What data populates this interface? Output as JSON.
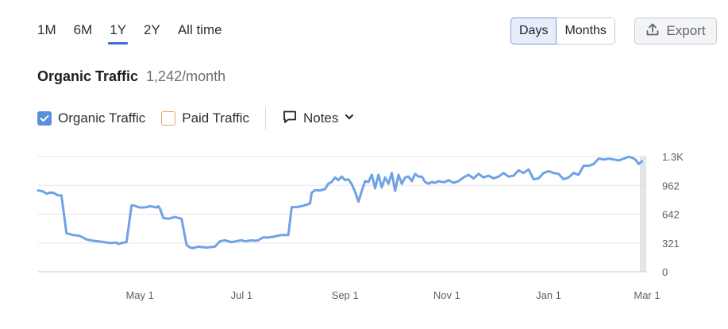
{
  "range_tabs": [
    {
      "label": "1M",
      "active": false
    },
    {
      "label": "6M",
      "active": false
    },
    {
      "label": "1Y",
      "active": true
    },
    {
      "label": "2Y",
      "active": false
    },
    {
      "label": "All time",
      "active": false
    }
  ],
  "granularity": {
    "days_label": "Days",
    "months_label": "Months",
    "selected": "Days"
  },
  "export": {
    "label": "Export",
    "icon": "upload-icon"
  },
  "header": {
    "title": "Organic Traffic",
    "value": "1,242/month"
  },
  "legend": {
    "organic_label": "Organic Traffic",
    "organic_checked": true,
    "paid_label": "Paid Traffic",
    "paid_checked": false,
    "notes_label": "Notes"
  },
  "colors": {
    "organic": "#6fa2e6",
    "paid": "#e0a96f",
    "accent": "#3f6fcf",
    "grid": "#e4e6ea"
  },
  "chart_data": {
    "type": "line",
    "x_tick_labels": [
      "May 1",
      "Jul 1",
      "Sep 1",
      "Nov 1",
      "Jan 1",
      "Mar 1"
    ],
    "y_tick_labels": [
      "1.3K",
      "962",
      "642",
      "321",
      "0"
    ],
    "ylim": [
      0,
      1283
    ],
    "grid": true,
    "series": [
      {
        "name": "Organic Traffic",
        "x": [
          "2024-03-01",
          "2024-03-04",
          "2024-03-06",
          "2024-03-08",
          "2024-03-10",
          "2024-03-13",
          "2024-03-15",
          "2024-03-18",
          "2024-03-22",
          "2024-03-26",
          "2024-03-30",
          "2024-04-03",
          "2024-04-08",
          "2024-04-13",
          "2024-04-17",
          "2024-04-18",
          "2024-04-20",
          "2024-04-23",
          "2024-04-26",
          "2024-04-28",
          "2024-04-30",
          "2024-05-02",
          "2024-05-05",
          "2024-05-07",
          "2024-05-09",
          "2024-05-11",
          "2024-05-12",
          "2024-05-13",
          "2024-05-15",
          "2024-05-18",
          "2024-05-22",
          "2024-05-26",
          "2024-05-29",
          "2024-05-31",
          "2024-06-02",
          "2024-06-05",
          "2024-06-10",
          "2024-06-15",
          "2024-06-18",
          "2024-06-21",
          "2024-06-25",
          "2024-06-29",
          "2024-07-01",
          "2024-07-03",
          "2024-07-07",
          "2024-07-09",
          "2024-07-11",
          "2024-07-14",
          "2024-07-16",
          "2024-07-20",
          "2024-07-25",
          "2024-07-29",
          "2024-07-31",
          "2024-08-03",
          "2024-08-07",
          "2024-08-11",
          "2024-08-12",
          "2024-08-14",
          "2024-08-17",
          "2024-08-20",
          "2024-08-22",
          "2024-08-24",
          "2024-08-26",
          "2024-08-28",
          "2024-08-30",
          "2024-09-01",
          "2024-09-03",
          "2024-09-05",
          "2024-09-07",
          "2024-09-09",
          "2024-09-11",
          "2024-09-13",
          "2024-09-15",
          "2024-09-17",
          "2024-09-19",
          "2024-09-21",
          "2024-09-23",
          "2024-09-25",
          "2024-09-27",
          "2024-09-29",
          "2024-10-01",
          "2024-10-03",
          "2024-10-05",
          "2024-10-07",
          "2024-10-09",
          "2024-10-11",
          "2024-10-13",
          "2024-10-15",
          "2024-10-17",
          "2024-10-19",
          "2024-10-21",
          "2024-10-23",
          "2024-10-25",
          "2024-10-27",
          "2024-10-29",
          "2024-10-31",
          "2024-11-02",
          "2024-11-05",
          "2024-11-08",
          "2024-11-11",
          "2024-11-14",
          "2024-11-17",
          "2024-11-20",
          "2024-11-23",
          "2024-11-26",
          "2024-11-29",
          "2024-12-02",
          "2024-12-05",
          "2024-12-08",
          "2024-12-11",
          "2024-12-14",
          "2024-12-17",
          "2024-12-20",
          "2024-12-23",
          "2024-12-26",
          "2024-12-29",
          "2025-01-01",
          "2025-01-04",
          "2025-01-07",
          "2025-01-10",
          "2025-01-13",
          "2025-01-16",
          "2025-01-19",
          "2025-01-22",
          "2025-01-25",
          "2025-01-28",
          "2025-01-31",
          "2025-02-03",
          "2025-02-06",
          "2025-02-09",
          "2025-02-12",
          "2025-02-15",
          "2025-02-18",
          "2025-02-20",
          "2025-02-22",
          "2025-02-24",
          "2025-02-26"
        ],
        "values": [
          905,
          895,
          870,
          880,
          880,
          850,
          850,
          430,
          410,
          400,
          360,
          345,
          335,
          320,
          325,
          310,
          320,
          330,
          740,
          735,
          720,
          715,
          720,
          730,
          725,
          715,
          730,
          705,
          600,
          590,
          610,
          590,
          300,
          270,
          265,
          280,
          270,
          280,
          340,
          350,
          330,
          345,
          350,
          340,
          350,
          345,
          350,
          385,
          380,
          390,
          410,
          410,
          720,
          720,
          735,
          760,
          880,
          910,
          905,
          920,
          980,
          1000,
          1050,
          1020,
          1060,
          1020,
          1030,
          975,
          890,
          780,
          900,
          1010,
          1000,
          1080,
          930,
          1080,
          940,
          1050,
          980,
          1100,
          900,
          1080,
          980,
          1050,
          1060,
          1010,
          1090,
          1060,
          1060,
          1000,
          980,
          1000,
          990,
          1010,
          1000,
          1000,
          1020,
          990,
          1010,
          1050,
          1080,
          1040,
          1090,
          1050,
          1070,
          1040,
          1060,
          1100,
          1060,
          1070,
          1130,
          1100,
          1140,
          1030,
          1040,
          1100,
          1120,
          1100,
          1090,
          1030,
          1050,
          1100,
          1080,
          1180,
          1180,
          1200,
          1260,
          1250,
          1260,
          1250,
          1240,
          1260,
          1280,
          1270,
          1250,
          1200,
          1230
        ]
      }
    ]
  }
}
